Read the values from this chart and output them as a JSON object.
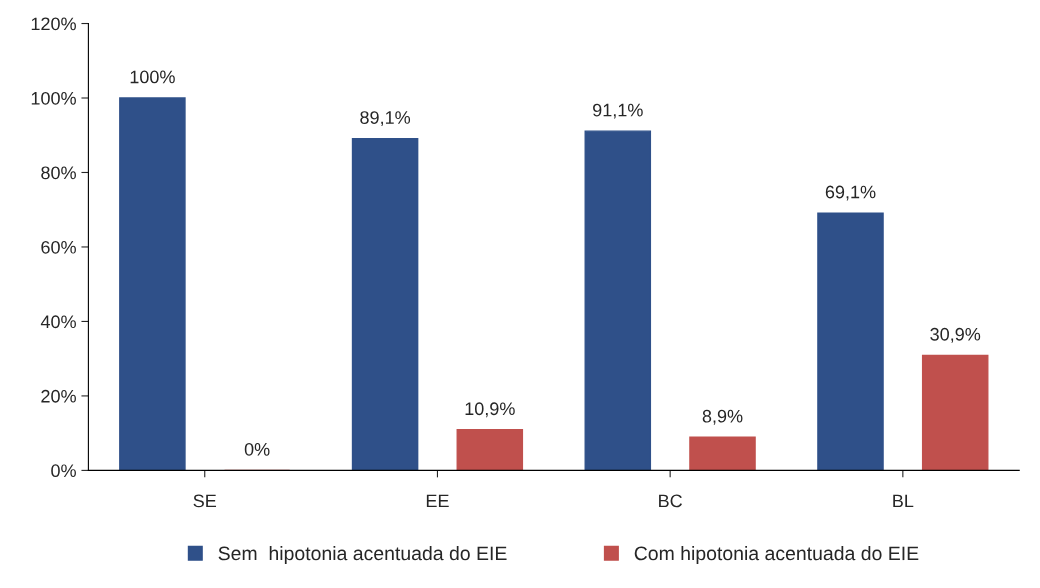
{
  "chart_data": {
    "type": "bar",
    "categories": [
      "SE",
      "EE",
      "BC",
      "BL"
    ],
    "series": [
      {
        "name": "Sem  hipotonia acentuada do EIE",
        "color": "#2f5089",
        "values": [
          100,
          89.1,
          91.1,
          69.1
        ],
        "value_labels": [
          "100%",
          "89,1%",
          "91,1%",
          "69,1%"
        ]
      },
      {
        "name": "Com hipotonia acentuada do EIE",
        "color": "#c0504d",
        "values": [
          0,
          10.9,
          8.9,
          30.9
        ],
        "value_labels": [
          "0%",
          "10,9%",
          "8,9%",
          "30,9%"
        ]
      }
    ],
    "ylim": [
      0,
      120
    ],
    "yticks": [
      {
        "value": 0,
        "label": "0%"
      },
      {
        "value": 20,
        "label": "20%"
      },
      {
        "value": 40,
        "label": "40%"
      },
      {
        "value": 60,
        "label": "60%"
      },
      {
        "value": 80,
        "label": "80%"
      },
      {
        "value": 100,
        "label": "100%"
      },
      {
        "value": 120,
        "label": "120%"
      }
    ],
    "grid": false,
    "legend": "bottom"
  }
}
